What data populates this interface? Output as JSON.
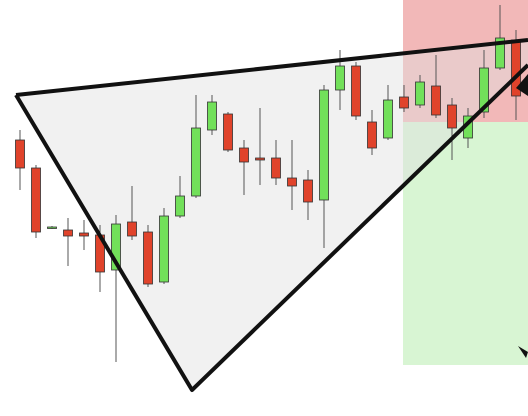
{
  "chart_data": {
    "type": "candlestick",
    "up_color": "#72e05a",
    "down_color": "#e0432b",
    "ylim": [
      0,
      416
    ],
    "open": [
      276,
      248,
      188,
      186,
      183,
      181,
      146,
      194,
      184,
      134,
      200,
      220,
      286,
      302,
      268,
      258,
      258,
      238,
      236,
      216,
      326,
      350,
      294,
      278,
      319,
      311,
      330,
      311,
      278,
      304,
      348,
      376
    ],
    "high": [
      286,
      251,
      190,
      198,
      196,
      191,
      201,
      230,
      191,
      208,
      240,
      321,
      321,
      304,
      276,
      308,
      276,
      276,
      246,
      331,
      366,
      354,
      306,
      331,
      331,
      341,
      361,
      318,
      308,
      366,
      411,
      386
    ],
    "low": [
      226,
      178,
      187,
      150,
      166,
      124,
      54,
      176,
      129,
      132,
      198,
      218,
      281,
      264,
      221,
      231,
      231,
      206,
      196,
      168,
      306,
      296,
      261,
      276,
      304,
      308,
      298,
      256,
      268,
      298,
      346,
      296
    ],
    "close": [
      248,
      184,
      189,
      180,
      180,
      144,
      192,
      180,
      132,
      200,
      220,
      288,
      314,
      266,
      254,
      256,
      238,
      230,
      214,
      326,
      350,
      300,
      268,
      316,
      308,
      334,
      301,
      288,
      300,
      348,
      378,
      320
    ]
  }
}
